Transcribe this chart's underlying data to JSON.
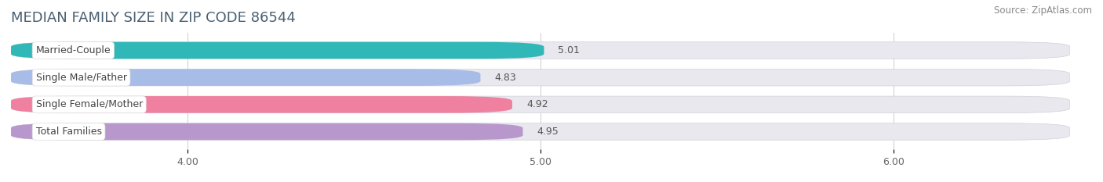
{
  "title": "MEDIAN FAMILY SIZE IN ZIP CODE 86544",
  "source": "Source: ZipAtlas.com",
  "categories": [
    "Married-Couple",
    "Single Male/Father",
    "Single Female/Mother",
    "Total Families"
  ],
  "values": [
    5.01,
    4.83,
    4.92,
    4.95
  ],
  "bar_colors": [
    "#30b8b8",
    "#a8bce8",
    "#f080a0",
    "#b898cc"
  ],
  "label_bg_color": "#ffffff",
  "bar_height": 0.62,
  "xmin": 3.5,
  "xmax": 6.5,
  "xlim": [
    3.5,
    6.5
  ],
  "xticks": [
    4.0,
    5.0,
    6.0
  ],
  "xtick_labels": [
    "4.00",
    "5.00",
    "6.00"
  ],
  "background_color": "#ffffff",
  "bar_bg_color": "#e8e8ee",
  "title_fontsize": 13,
  "label_fontsize": 9,
  "value_fontsize": 9,
  "source_fontsize": 8.5
}
